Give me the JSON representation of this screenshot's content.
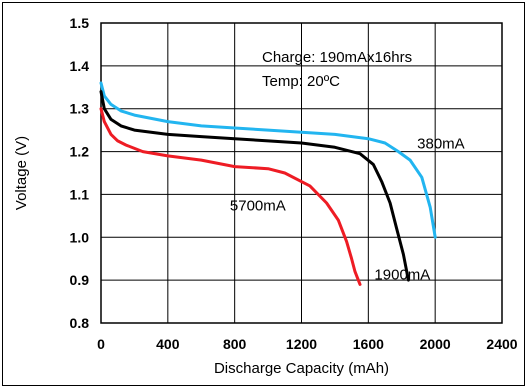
{
  "chart_data": {
    "type": "line",
    "xlabel": "Discharge Capacity (mAh)",
    "ylabel": "Voltage (V)",
    "xlim": [
      0,
      2400
    ],
    "ylim": [
      0.8,
      1.5
    ],
    "xticks": [
      "0",
      "400",
      "800",
      "1200",
      "1600",
      "2000",
      "2400"
    ],
    "yticks": [
      "0.8",
      "0.9",
      "1.0",
      "1.1",
      "1.2",
      "1.3",
      "1.4",
      "1.5"
    ],
    "grid": true,
    "annotations": [
      "Charge: 190mAx16hrs",
      "Temp: 20ºC"
    ],
    "series": [
      {
        "name": "380mA",
        "color": "#22b5f0",
        "x": [
          0,
          20,
          60,
          120,
          200,
          400,
          600,
          800,
          1000,
          1200,
          1400,
          1600,
          1700,
          1780,
          1850,
          1920,
          1970,
          2000
        ],
        "y": [
          1.36,
          1.33,
          1.31,
          1.295,
          1.285,
          1.27,
          1.26,
          1.255,
          1.25,
          1.245,
          1.24,
          1.23,
          1.22,
          1.2,
          1.18,
          1.14,
          1.07,
          1.0
        ]
      },
      {
        "name": "1900mA",
        "color": "#000000",
        "x": [
          0,
          20,
          60,
          120,
          200,
          400,
          600,
          800,
          1000,
          1200,
          1400,
          1550,
          1630,
          1680,
          1730,
          1770,
          1810,
          1840
        ],
        "y": [
          1.34,
          1.3,
          1.275,
          1.26,
          1.25,
          1.24,
          1.235,
          1.23,
          1.225,
          1.22,
          1.21,
          1.195,
          1.17,
          1.13,
          1.08,
          1.02,
          0.96,
          0.9
        ]
      },
      {
        "name": "5700mA",
        "color": "#ee1c24",
        "x": [
          0,
          20,
          60,
          100,
          150,
          250,
          400,
          600,
          800,
          1000,
          1100,
          1250,
          1350,
          1420,
          1470,
          1500,
          1520,
          1540,
          1550
        ],
        "y": [
          1.3,
          1.27,
          1.24,
          1.225,
          1.215,
          1.2,
          1.19,
          1.18,
          1.165,
          1.16,
          1.15,
          1.12,
          1.08,
          1.04,
          0.99,
          0.95,
          0.92,
          0.9,
          0.89
        ]
      }
    ],
    "series_labels": [
      {
        "name": "380mA",
        "anchor_x": 2000,
        "anchor_y": 1.2
      },
      {
        "name": "1900mA",
        "anchor_x": 1840,
        "anchor_y": 0.96
      },
      {
        "name": "5700mA",
        "anchor_x": 1250,
        "anchor_y": 1.1
      }
    ]
  }
}
